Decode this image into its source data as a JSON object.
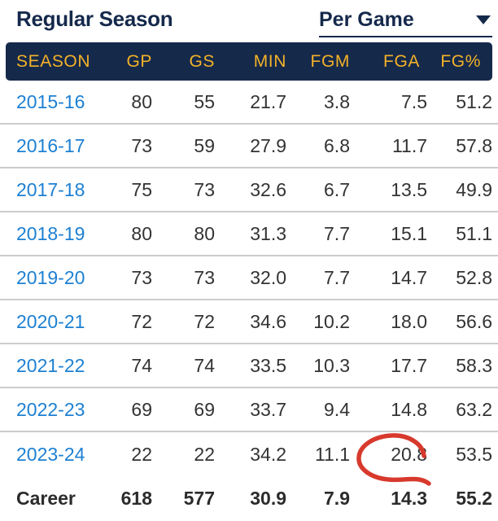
{
  "topbar": {
    "title": "Regular Season",
    "dropdown_label": "Per Game"
  },
  "table": {
    "columns": [
      "SEASON",
      "GP",
      "GS",
      "MIN",
      "FGM",
      "FGA",
      "FG%"
    ],
    "rows": [
      {
        "season": "2015-16",
        "stats": [
          "80",
          "55",
          "21.7",
          "3.8",
          "7.5",
          "51.2"
        ]
      },
      {
        "season": "2016-17",
        "stats": [
          "73",
          "59",
          "27.9",
          "6.8",
          "11.7",
          "57.8"
        ]
      },
      {
        "season": "2017-18",
        "stats": [
          "75",
          "73",
          "32.6",
          "6.7",
          "13.5",
          "49.9"
        ]
      },
      {
        "season": "2018-19",
        "stats": [
          "80",
          "80",
          "31.3",
          "7.7",
          "15.1",
          "51.1"
        ]
      },
      {
        "season": "2019-20",
        "stats": [
          "73",
          "73",
          "32.0",
          "7.7",
          "14.7",
          "52.8"
        ]
      },
      {
        "season": "2020-21",
        "stats": [
          "72",
          "72",
          "34.6",
          "10.2",
          "18.0",
          "56.6"
        ]
      },
      {
        "season": "2021-22",
        "stats": [
          "74",
          "74",
          "33.5",
          "10.3",
          "17.7",
          "58.3"
        ]
      },
      {
        "season": "2022-23",
        "stats": [
          "69",
          "69",
          "33.7",
          "9.4",
          "14.8",
          "63.2"
        ]
      },
      {
        "season": "2023-24",
        "stats": [
          "22",
          "22",
          "34.2",
          "11.1",
          "20.8",
          "53.5"
        ]
      }
    ],
    "career": {
      "label": "Career",
      "stats": [
        "618",
        "577",
        "30.9",
        "7.9",
        "14.3",
        "55.2"
      ]
    }
  },
  "annotation": {
    "shape": "hand-drawn-circle",
    "circled_value": "20.8",
    "circled_cell": "2023-24 FGA",
    "color": "#d8392d"
  },
  "colors": {
    "navy": "#15294b",
    "gold": "#f3b229",
    "link_blue": "#1d80d2",
    "body_text": "#333333",
    "divider": "#cccccc",
    "annotation_red": "#d8392d"
  }
}
